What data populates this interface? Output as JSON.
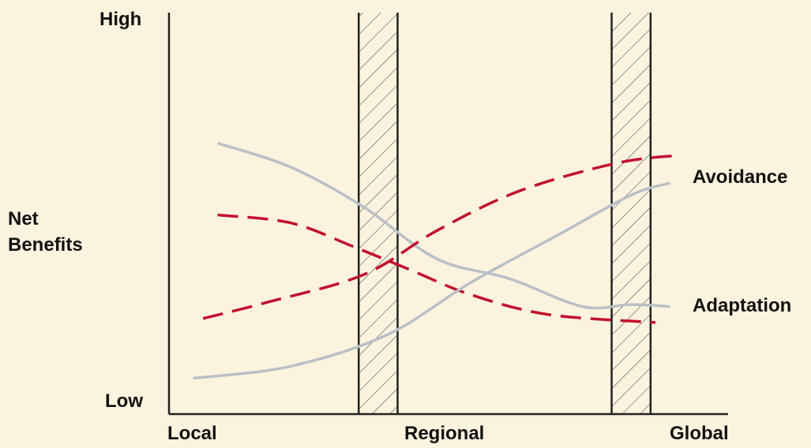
{
  "chart_data": {
    "type": "line",
    "title": "",
    "y_label_lines": [
      "Net",
      "Benefits"
    ],
    "y_scale_labels": {
      "high": "High",
      "low": "Low"
    },
    "x_scale_labels": [
      "Local",
      "Regional",
      "Global"
    ],
    "ylim": [
      0,
      100
    ],
    "xlim": [
      0,
      100
    ],
    "grid": false,
    "hatched_bands": [
      {
        "from": 39,
        "to": 47
      },
      {
        "from": 91,
        "to": 99
      }
    ],
    "colors": {
      "solid": "#b9c0c6",
      "dashed": "#c2102f",
      "frame": "#222222"
    },
    "series": [
      {
        "name": "Avoidance",
        "style": "solid",
        "x": [
          10,
          25,
          40,
          55,
          70,
          85,
          95,
          103
        ],
        "y": [
          68,
          62,
          52,
          39,
          34,
          27,
          27.5,
          27
        ]
      },
      {
        "style": "dashed",
        "x": [
          10,
          25,
          38,
          50,
          62,
          78,
          100
        ],
        "y": [
          50,
          48,
          42,
          36,
          30,
          25,
          23
        ]
      },
      {
        "style": "solid",
        "x": [
          5,
          25,
          45,
          62,
          80,
          95,
          103
        ],
        "y": [
          9,
          12,
          20,
          33,
          45,
          55,
          58
        ]
      },
      {
        "style": "dashed",
        "x": [
          7,
          20,
          40,
          55,
          72,
          92,
          105
        ],
        "y": [
          24,
          28,
          35,
          46,
          56,
          63,
          65
        ]
      },
      {
        "name": "Adaptation",
        "style": "solid",
        "x": [],
        "y": []
      }
    ]
  }
}
